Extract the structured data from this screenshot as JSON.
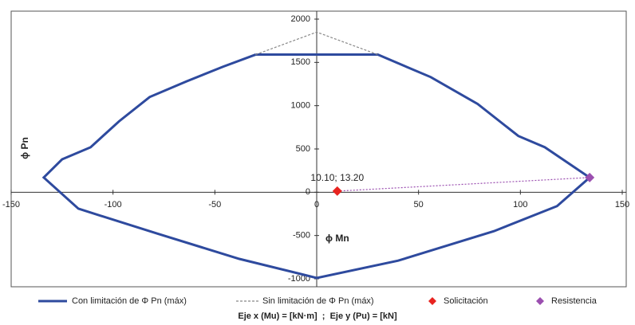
{
  "chart_data": {
    "type": "line",
    "y_label": "ϕ Pn",
    "x_label": "ϕ Mn",
    "note": "Eje x (Mu) = [kN·m]  ;  Eje y (Pu) = [kN]",
    "xlim": [
      -150,
      150
    ],
    "xticks": [
      -150,
      -100,
      -50,
      0,
      50,
      100,
      150
    ],
    "ylim": [
      -1000,
      2000
    ],
    "yticks": [
      -1000,
      -500,
      0,
      500,
      1000,
      1500,
      2000
    ],
    "grid": false,
    "series": [
      {
        "name": "Con limitación de Φ Pn (máx)",
        "color": "#2e4a9e",
        "kind": "solid",
        "x": [
          -30,
          30,
          56,
          79,
          99,
          112,
          134,
          118,
          87,
          40,
          0,
          -38,
          -78,
          -117,
          -134,
          -125,
          -111,
          -97,
          -82,
          -64,
          -46,
          -30
        ],
        "y": [
          1590,
          1590,
          1330,
          1020,
          650,
          520,
          170,
          -160,
          -450,
          -790,
          -990,
          -770,
          -480,
          -190,
          170,
          380,
          520,
          820,
          1100,
          1280,
          1450,
          1590
        ]
      },
      {
        "name": "Sin limitación de Φ Pn (máx)",
        "color": "#888888",
        "kind": "dashed",
        "x": [
          -30,
          0,
          30
        ],
        "y": [
          1590,
          1850,
          1590
        ]
      },
      {
        "name": "Solicitación",
        "color": "#e8231f",
        "kind": "marker",
        "x": [
          10.1
        ],
        "y": [
          13.2
        ],
        "value_labels": [
          "10.10; 13.20"
        ]
      },
      {
        "name": "Resistencia",
        "color": "#9b4fb0",
        "kind": "marker",
        "x": [
          134
        ],
        "y": [
          170
        ]
      }
    ]
  }
}
